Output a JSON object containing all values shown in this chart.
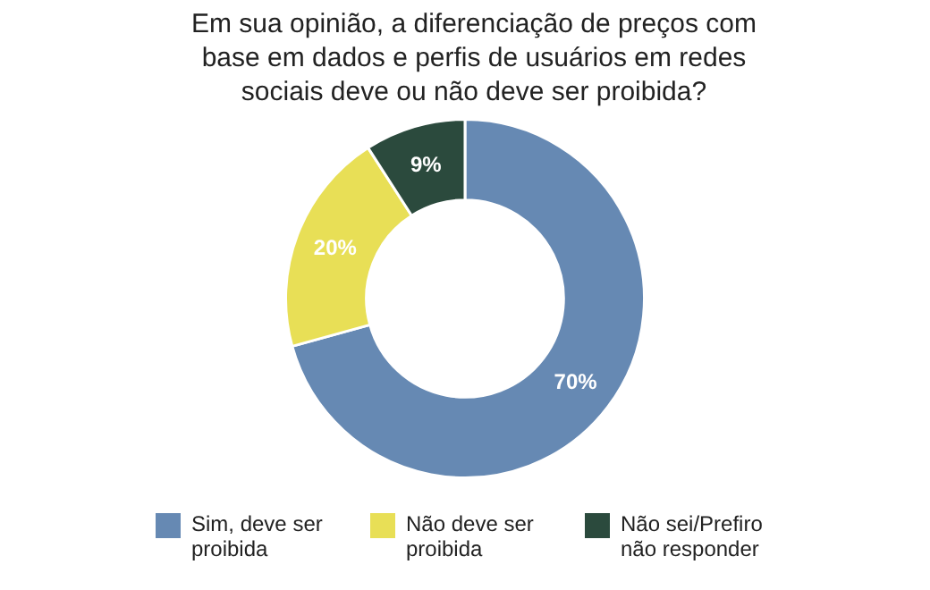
{
  "chart_data": {
    "type": "donut",
    "title": "Em sua opinião, a diferenciação de preços com base em dados e perfis de usuários em redes sociais deve ou não deve ser proibida?",
    "categories": [
      "Sim, deve ser proibida",
      "Não deve ser proibida",
      "Não sei/Prefiro não responder"
    ],
    "values": [
      70,
      20,
      9
    ],
    "value_labels": [
      "70%",
      "20%",
      "9%"
    ],
    "colors": [
      "#6689b3",
      "#e8df56",
      "#2b4a3d"
    ],
    "legend": "bottom"
  }
}
